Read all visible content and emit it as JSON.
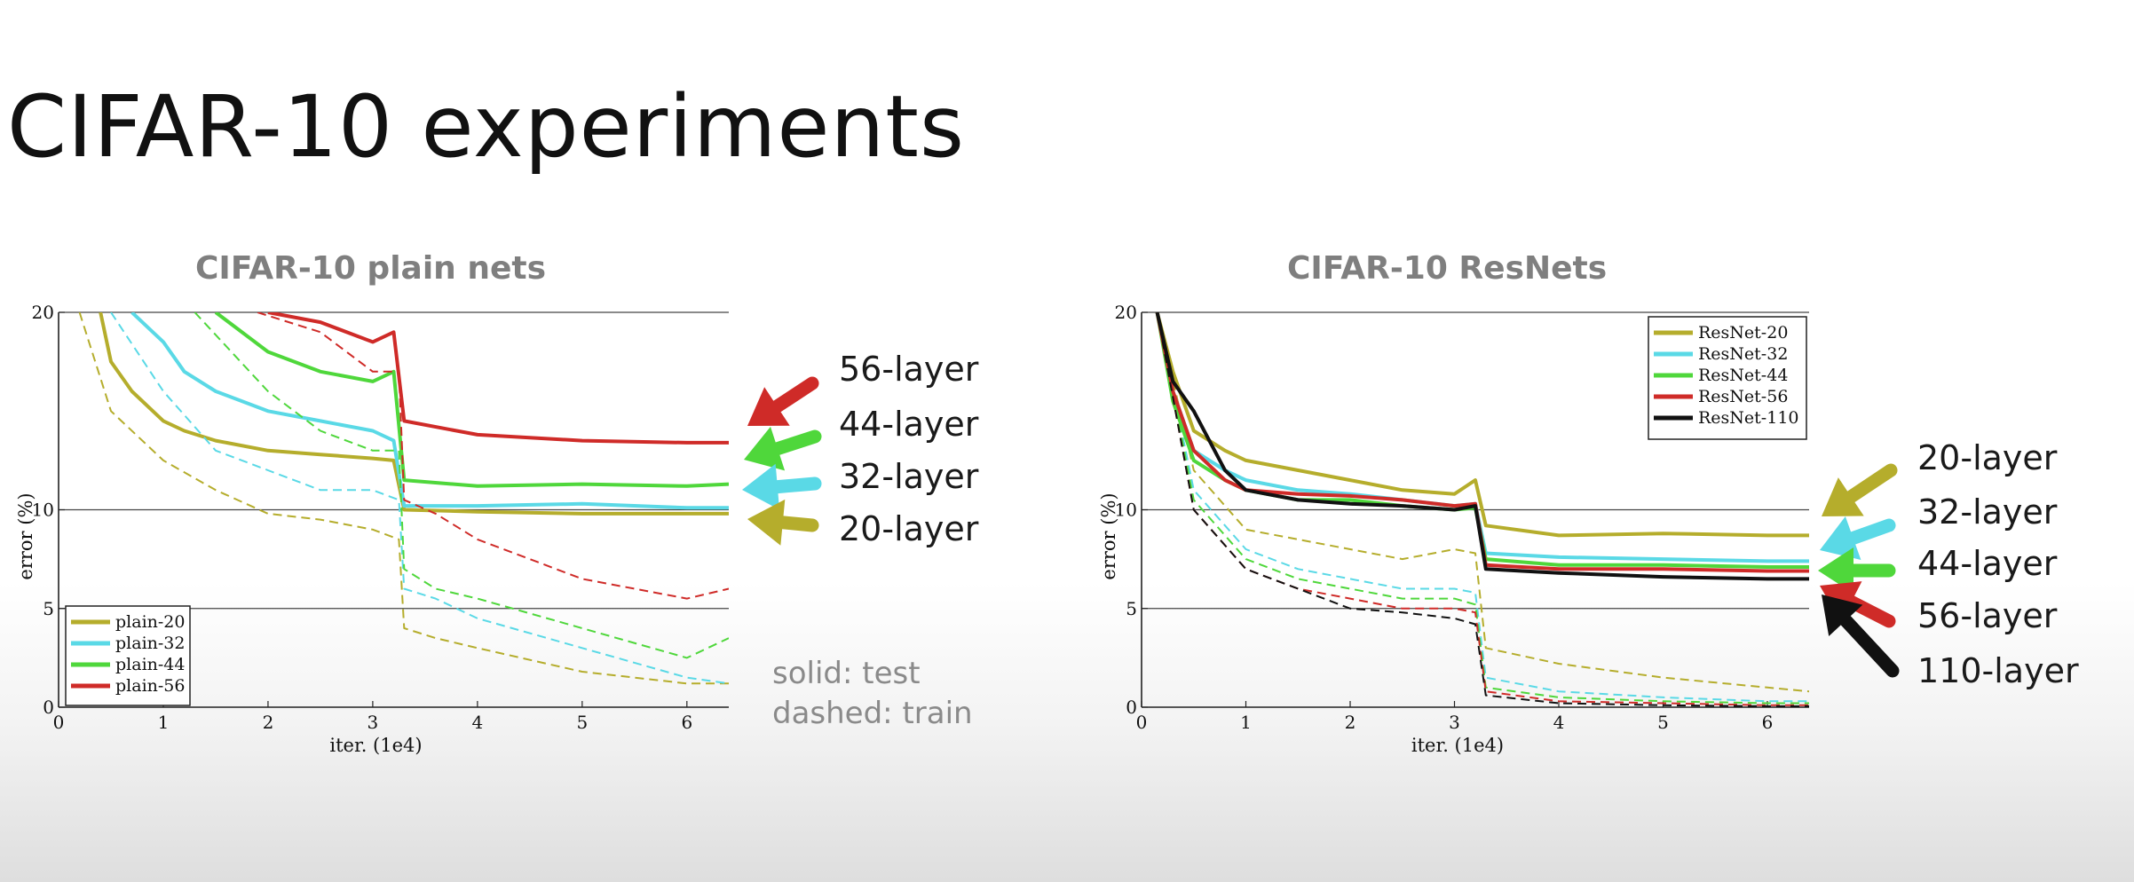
{
  "slide": {
    "title": "CIFAR-10 experiments"
  },
  "colors": {
    "c20": "#b5ad2c",
    "c32": "#5ad9e6",
    "c44": "#4fd73b",
    "c56": "#cf2b28",
    "c110": "#111111"
  },
  "chart_data": [
    {
      "type": "line",
      "title": "CIFAR-10 plain nets",
      "xlabel": "iter. (1e4)",
      "ylabel": "error (%)",
      "xlim": [
        0,
        6.4
      ],
      "ylim": [
        0,
        20
      ],
      "xticks": [
        0,
        1,
        2,
        3,
        4,
        5,
        6
      ],
      "yticks": [
        0,
        5,
        10,
        20
      ],
      "gridlines_y": [
        5,
        10,
        20
      ],
      "legend_position": "bottom-left",
      "series": [
        {
          "name": "plain-20",
          "color": "#b5ad2c",
          "test": {
            "x": [
              0.4,
              0.5,
              0.7,
              1.0,
              1.2,
              1.5,
              2.0,
              2.5,
              3.0,
              3.2,
              3.3,
              4.0,
              5.0,
              6.0,
              6.4
            ],
            "y": [
              20,
              17.5,
              16,
              14.5,
              14,
              13.5,
              13,
              12.8,
              12.6,
              12.5,
              10,
              9.9,
              9.8,
              9.8,
              9.8
            ]
          },
          "train": {
            "x": [
              0.2,
              0.5,
              1.0,
              1.5,
              2.0,
              2.5,
              3.0,
              3.25,
              3.3,
              3.6,
              4.0,
              5.0,
              6.0,
              6.4
            ],
            "y": [
              20,
              15,
              12.5,
              11,
              9.8,
              9.5,
              9,
              8.5,
              4,
              3.5,
              3,
              1.8,
              1.2,
              1.2
            ]
          }
        },
        {
          "name": "plain-32",
          "color": "#5ad9e6",
          "test": {
            "x": [
              0.7,
              0.9,
              1.0,
              1.2,
              1.5,
              2.0,
              2.5,
              3.0,
              3.2,
              3.3,
              4.0,
              5.0,
              6.0,
              6.4
            ],
            "y": [
              20,
              19,
              18.5,
              17,
              16,
              15,
              14.5,
              14,
              13.5,
              10.2,
              10.2,
              10.3,
              10.1,
              10.1
            ]
          },
          "train": {
            "x": [
              0.5,
              1.0,
              1.5,
              2.0,
              2.5,
              3.0,
              3.25,
              3.3,
              3.6,
              4.0,
              5.0,
              6.0,
              6.4
            ],
            "y": [
              20,
              16,
              13,
              12,
              11,
              11,
              10.5,
              6,
              5.5,
              4.5,
              3,
              1.5,
              1.2
            ]
          }
        },
        {
          "name": "plain-44",
          "color": "#4fd73b",
          "test": {
            "x": [
              1.5,
              2.0,
              2.5,
              3.0,
              3.2,
              3.3,
              4.0,
              5.0,
              6.0,
              6.4
            ],
            "y": [
              20,
              18,
              17,
              16.5,
              17,
              11.5,
              11.2,
              11.3,
              11.2,
              11.3
            ]
          },
          "train": {
            "x": [
              1.3,
              2.0,
              2.5,
              3.0,
              3.25,
              3.3,
              3.6,
              4.0,
              5.0,
              6.0,
              6.4
            ],
            "y": [
              20,
              16,
              14,
              13,
              13,
              7,
              6,
              5.5,
              4,
              2.5,
              3.5
            ]
          }
        },
        {
          "name": "plain-56",
          "color": "#cf2b28",
          "test": {
            "x": [
              2.0,
              2.5,
              3.0,
              3.2,
              3.3,
              4.0,
              5.0,
              6.0,
              6.4
            ],
            "y": [
              20,
              19.5,
              18.5,
              19,
              14.5,
              13.8,
              13.5,
              13.4,
              13.4
            ]
          },
          "train": {
            "x": [
              1.9,
              2.5,
              3.0,
              3.25,
              3.3,
              3.6,
              4.0,
              4.5,
              5.0,
              6.0,
              6.4
            ],
            "y": [
              20,
              19,
              17,
              17,
              10.5,
              9.8,
              8.5,
              7.5,
              6.5,
              5.5,
              6
            ]
          }
        }
      ]
    },
    {
      "type": "line",
      "title": "CIFAR-10 ResNets",
      "xlabel": "iter. (1e4)",
      "ylabel": "error (%)",
      "xlim": [
        0,
        6.4
      ],
      "ylim": [
        0,
        20
      ],
      "xticks": [
        0,
        1,
        2,
        3,
        4,
        5,
        6
      ],
      "yticks": [
        0,
        5,
        10,
        20
      ],
      "gridlines_y": [
        5,
        10,
        20
      ],
      "legend_position": "top-right",
      "series": [
        {
          "name": "ResNet-20",
          "color": "#b5ad2c",
          "test": {
            "x": [
              0.15,
              0.3,
              0.5,
              0.8,
              1.0,
              1.5,
              2.0,
              2.5,
              3.0,
              3.2,
              3.3,
              4.0,
              5.0,
              6.0,
              6.4
            ],
            "y": [
              20,
              17,
              14,
              13,
              12.5,
              12,
              11.5,
              11,
              10.8,
              11.5,
              9.2,
              8.7,
              8.8,
              8.7,
              8.7
            ]
          },
          "train": {
            "x": [
              0.15,
              0.5,
              1.0,
              1.5,
              2.0,
              2.5,
              3.0,
              3.2,
              3.3,
              4.0,
              5.0,
              6.0,
              6.4
            ],
            "y": [
              20,
              12,
              9,
              8.5,
              8,
              7.5,
              8,
              7.8,
              3,
              2.2,
              1.5,
              1,
              0.8
            ]
          }
        },
        {
          "name": "ResNet-32",
          "color": "#5ad9e6",
          "test": {
            "x": [
              0.15,
              0.3,
              0.5,
              0.8,
              1.0,
              1.5,
              2.0,
              2.5,
              3.0,
              3.2,
              3.3,
              4.0,
              5.0,
              6.0,
              6.4
            ],
            "y": [
              20,
              16,
              13,
              12,
              11.5,
              11,
              10.8,
              10.5,
              10.2,
              10.3,
              7.8,
              7.6,
              7.5,
              7.4,
              7.4
            ]
          },
          "train": {
            "x": [
              0.15,
              0.5,
              1.0,
              1.5,
              2.0,
              2.5,
              3.0,
              3.2,
              3.3,
              4.0,
              5.0,
              6.0,
              6.4
            ],
            "y": [
              20,
              11,
              8,
              7,
              6.5,
              6,
              6,
              5.8,
              1.5,
              0.8,
              0.5,
              0.3,
              0.3
            ]
          }
        },
        {
          "name": "ResNet-44",
          "color": "#4fd73b",
          "test": {
            "x": [
              0.15,
              0.3,
              0.5,
              0.8,
              1.0,
              1.5,
              2.0,
              2.5,
              3.0,
              3.2,
              3.3,
              4.0,
              5.0,
              6.0,
              6.4
            ],
            "y": [
              20,
              15.5,
              12.5,
              11.5,
              11,
              10.5,
              10.5,
              10.2,
              10,
              10.1,
              7.5,
              7.2,
              7.2,
              7.1,
              7.1
            ]
          },
          "train": {
            "x": [
              0.15,
              0.5,
              1.0,
              1.5,
              2.0,
              2.5,
              3.0,
              3.2,
              3.3,
              4.0,
              5.0,
              6.0,
              6.4
            ],
            "y": [
              20,
              10.5,
              7.5,
              6.5,
              6,
              5.5,
              5.5,
              5.2,
              1,
              0.5,
              0.3,
              0.2,
              0.2
            ]
          }
        },
        {
          "name": "ResNet-56",
          "color": "#cf2b28",
          "test": {
            "x": [
              0.15,
              0.3,
              0.5,
              0.8,
              1.0,
              1.5,
              2.0,
              2.5,
              3.0,
              3.2,
              3.3,
              4.0,
              5.0,
              6.0,
              6.4
            ],
            "y": [
              20,
              16,
              13,
              11.5,
              11,
              10.8,
              10.7,
              10.5,
              10.2,
              10.3,
              7.2,
              7,
              7,
              6.9,
              6.9
            ]
          },
          "train": {
            "x": [
              0.15,
              0.5,
              1.0,
              1.5,
              2.0,
              2.5,
              3.0,
              3.2,
              3.3,
              4.0,
              5.0,
              6.0,
              6.4
            ],
            "y": [
              20,
              10,
              7,
              6,
              5.5,
              5,
              5,
              4.8,
              0.8,
              0.3,
              0.2,
              0.1,
              0.1
            ]
          }
        },
        {
          "name": "ResNet-110",
          "color": "#111111",
          "test": {
            "x": [
              0.15,
              0.3,
              0.5,
              0.8,
              1.0,
              1.5,
              2.0,
              2.5,
              3.0,
              3.2,
              3.3,
              4.0,
              5.0,
              6.0,
              6.4
            ],
            "y": [
              20,
              16.5,
              15,
              12,
              11,
              10.5,
              10.3,
              10.2,
              10,
              10.2,
              7,
              6.8,
              6.6,
              6.5,
              6.5
            ]
          },
          "train": {
            "x": [
              0.15,
              0.5,
              1.0,
              1.5,
              2.0,
              2.5,
              3.0,
              3.2,
              3.3,
              4.0,
              5.0,
              6.0,
              6.4
            ],
            "y": [
              20,
              10,
              7,
              6,
              5,
              4.8,
              4.5,
              4.2,
              0.6,
              0.2,
              0.1,
              0.05,
              0.05
            ]
          }
        }
      ]
    }
  ],
  "callouts": {
    "left": [
      {
        "label": "56-layer",
        "color": "#cf2b28"
      },
      {
        "label": "44-layer",
        "color": "#4fd73b"
      },
      {
        "label": "32-layer",
        "color": "#5ad9e6"
      },
      {
        "label": "20-layer",
        "color": "#b5ad2c"
      }
    ],
    "right": [
      {
        "label": "20-layer",
        "color": "#b5ad2c"
      },
      {
        "label": "32-layer",
        "color": "#5ad9e6"
      },
      {
        "label": "44-layer",
        "color": "#4fd73b"
      },
      {
        "label": "56-layer",
        "color": "#cf2b28"
      },
      {
        "label": "110-layer",
        "color": "#111111"
      }
    ]
  },
  "notes": {
    "solid": "solid: test",
    "dashed": "dashed: train"
  }
}
